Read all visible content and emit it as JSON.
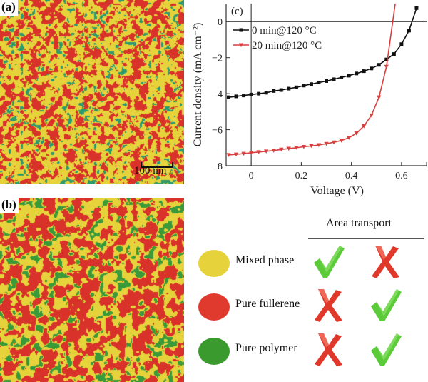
{
  "panels": {
    "a": {
      "label": "(a)",
      "scale_bar": "100 nm"
    },
    "b": {
      "label": "(b)"
    }
  },
  "phase_colors": {
    "mixed": "#e6d23a",
    "fullerene": "#d8322a",
    "polymer": "#3a9a3a",
    "polymer_a": "#2e9a6e"
  },
  "legend": {
    "title": "Area transport",
    "rows": [
      {
        "label": "Mixed phase",
        "color": "#e6d23a",
        "col1": "check",
        "col2": "cross"
      },
      {
        "label": "Pure fullerene",
        "color": "#e03a2e",
        "col1": "cross",
        "col2": "check"
      },
      {
        "label": "Pure polymer",
        "color": "#3a9a2e",
        "col1": "cross",
        "col2": "check"
      }
    ]
  },
  "chart_data": {
    "type": "line",
    "panel_label": "(c)",
    "title": "",
    "xlabel": "Voltage (V)",
    "ylabel": "Current density (mA cm⁻²)",
    "xlim": [
      -0.1,
      0.7
    ],
    "ylim": [
      -8,
      1
    ],
    "xticks": [
      0,
      0.2,
      0.4,
      0.6
    ],
    "xtick_labels": [
      "0",
      "0.2",
      "0.4",
      "0.6"
    ],
    "yticks": [
      0,
      -2,
      -4,
      -6,
      -8
    ],
    "ytick_labels": [
      "0",
      "−2",
      "−4",
      "−6",
      "−8"
    ],
    "legend_position": "top-left",
    "series": [
      {
        "name": "0 min@120 °C",
        "color": "#111111",
        "marker": "square",
        "x": [
          -0.09,
          -0.06,
          -0.03,
          0.0,
          0.03,
          0.06,
          0.09,
          0.12,
          0.15,
          0.18,
          0.21,
          0.24,
          0.27,
          0.3,
          0.33,
          0.36,
          0.39,
          0.42,
          0.45,
          0.48,
          0.51,
          0.54,
          0.57,
          0.6,
          0.63,
          0.66
        ],
        "y": [
          -4.2,
          -4.15,
          -4.1,
          -4.05,
          -4.0,
          -3.95,
          -3.85,
          -3.8,
          -3.72,
          -3.65,
          -3.55,
          -3.47,
          -3.38,
          -3.3,
          -3.2,
          -3.1,
          -3.0,
          -2.88,
          -2.75,
          -2.6,
          -2.4,
          -2.1,
          -1.8,
          -1.25,
          -0.5,
          0.75
        ]
      },
      {
        "name": "20 min@120 °C",
        "color": "#d84040",
        "marker": "triangle-down",
        "x": [
          -0.09,
          -0.06,
          -0.03,
          0.0,
          0.03,
          0.06,
          0.09,
          0.12,
          0.15,
          0.18,
          0.21,
          0.24,
          0.27,
          0.3,
          0.33,
          0.36,
          0.39,
          0.42,
          0.45,
          0.48,
          0.51,
          0.54
        ],
        "y": [
          -7.4,
          -7.37,
          -7.33,
          -7.28,
          -7.24,
          -7.2,
          -7.16,
          -7.1,
          -7.05,
          -7.0,
          -6.95,
          -6.9,
          -6.85,
          -6.78,
          -6.7,
          -6.6,
          -6.45,
          -6.2,
          -5.8,
          -5.2,
          -4.2,
          -2.5
        ]
      }
    ],
    "curve_end_20min": {
      "x": 0.575,
      "y": 1
    }
  }
}
